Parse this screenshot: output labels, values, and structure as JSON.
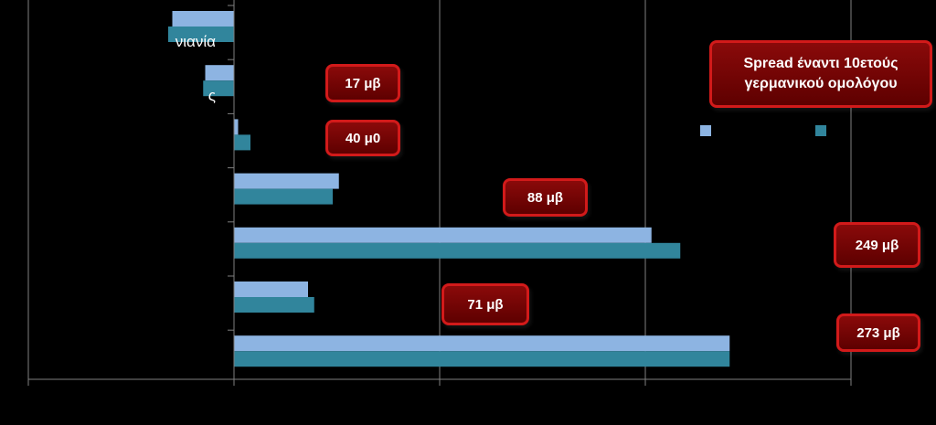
{
  "chart_data": {
    "type": "bar",
    "orientation": "horizontal",
    "title": "",
    "xlabel": "",
    "ylabel": "",
    "categories": [
      "νιανία",
      "ς",
      "",
      "",
      "",
      "",
      ""
    ],
    "series": [
      {
        "color": "#8db4e2",
        "values": [
          -0.3,
          -0.14,
          0.02,
          0.51,
          2.03,
          0.36,
          2.41
        ]
      },
      {
        "color": "#31859c",
        "values": [
          -0.32,
          -0.15,
          0.08,
          0.48,
          2.17,
          0.39,
          2.41
        ]
      }
    ],
    "xlim": [
      -1,
      3
    ],
    "x_gridlines": [
      -1,
      0,
      1,
      2,
      3
    ],
    "grid": true,
    "legend_position": "right"
  },
  "callouts": {
    "spread_title": "Spread έναντι 10ετούς\nγερμανικού ομολόγου",
    "labels": [
      "17 μβ",
      "40 μ0",
      "88 μβ",
      "249  μβ",
      "71 μβ",
      "273 μβ"
    ]
  },
  "colors": {
    "background": "#000000",
    "series_light": "#8db4e2",
    "series_dark": "#31859c",
    "callout_fill": "#6e0404",
    "callout_border": "#d21a1a"
  }
}
